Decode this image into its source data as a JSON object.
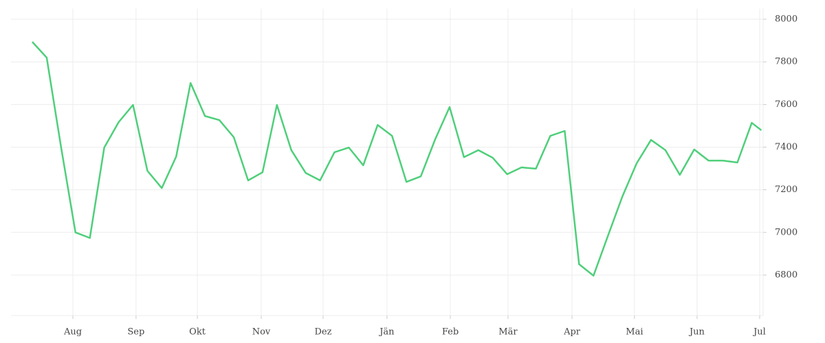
{
  "chart_data": {
    "type": "line",
    "x": [
      0,
      1,
      2,
      3,
      4,
      5,
      6,
      7,
      8,
      9,
      10,
      11,
      12,
      13,
      14,
      15,
      16,
      17,
      18,
      19,
      20,
      21,
      22,
      23,
      24,
      25,
      26,
      27,
      28,
      29,
      30,
      31,
      32,
      33,
      34,
      35,
      36,
      37,
      38,
      39,
      40,
      41,
      42,
      43,
      44,
      45,
      46,
      47,
      48,
      49,
      50,
      50.67
    ],
    "series": [
      {
        "color": "#4ecf7a",
        "values": [
          7894,
          7820,
          7400,
          7000,
          6974,
          7398,
          7517,
          7598,
          7289,
          7208,
          7356,
          7701,
          7546,
          7527,
          7447,
          7244,
          7282,
          7598,
          7386,
          7279,
          7244,
          7376,
          7398,
          7315,
          7504,
          7453,
          7237,
          7263,
          7437,
          7588,
          7353,
          7386,
          7350,
          7273,
          7305,
          7299,
          7453,
          7476,
          6851,
          6797,
          6983,
          7167,
          7324,
          7434,
          7386,
          7270,
          7389,
          7337,
          7337,
          7328,
          7514,
          7479
        ]
      }
    ],
    "xlim": [
      -1.48,
      50.79
    ],
    "xticks": [
      {
        "value": 2.82,
        "label": "Aug"
      },
      {
        "value": 7.21,
        "label": "Sep"
      },
      {
        "value": 11.47,
        "label": "Okt"
      },
      {
        "value": 15.91,
        "label": "Nov"
      },
      {
        "value": 20.21,
        "label": "Dez"
      },
      {
        "value": 24.65,
        "label": "Jän"
      },
      {
        "value": 29.05,
        "label": "Feb"
      },
      {
        "value": 33.06,
        "label": "Mär"
      },
      {
        "value": 37.51,
        "label": "Apr"
      },
      {
        "value": 41.85,
        "label": "Mai"
      },
      {
        "value": 46.2,
        "label": "Jun"
      },
      {
        "value": 50.55,
        "label": "Jul"
      }
    ],
    "ylim": [
      6610,
      8050
    ],
    "yticks": [
      6800,
      7000,
      7200,
      7400,
      7600,
      7800,
      8000
    ],
    "grid": true
  }
}
